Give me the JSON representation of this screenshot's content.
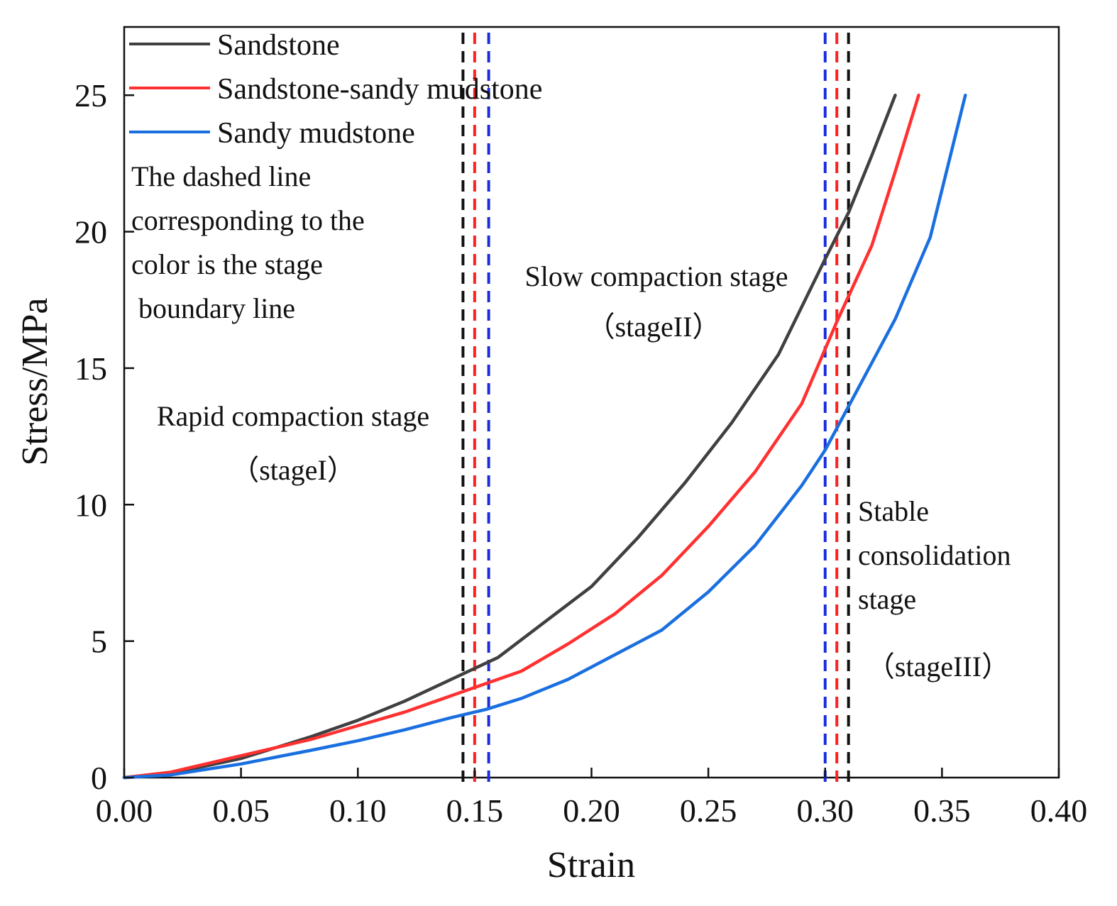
{
  "chart_data": {
    "type": "line",
    "title": "",
    "xlabel": "Strain",
    "ylabel": "Stress/MPa",
    "xlim": [
      0,
      0.4
    ],
    "ylim": [
      0,
      27.5
    ],
    "xticks": [
      0,
      0.05,
      0.1,
      0.15,
      0.2,
      0.25,
      0.3,
      0.35,
      0.4
    ],
    "xtick_labels": [
      "0.00",
      "0.05",
      "0.10",
      "0.15",
      "0.20",
      "0.25",
      "0.30",
      "0.35",
      "0.40"
    ],
    "yticks": [
      0,
      5,
      10,
      15,
      20,
      25
    ],
    "ytick_labels": [
      "0",
      "5",
      "10",
      "15",
      "20",
      "25"
    ],
    "grid": false,
    "legend_position": "top-left",
    "series": [
      {
        "name": "Sandstone",
        "color": "#404040",
        "x": [
          0,
          0.02,
          0.05,
          0.08,
          0.1,
          0.12,
          0.145,
          0.16,
          0.18,
          0.2,
          0.22,
          0.24,
          0.26,
          0.28,
          0.3,
          0.31,
          0.32,
          0.33
        ],
        "y": [
          0,
          0.15,
          0.7,
          1.5,
          2.1,
          2.8,
          3.8,
          4.4,
          5.7,
          7.0,
          8.8,
          10.8,
          13.0,
          15.5,
          19.0,
          20.7,
          22.8,
          25.0
        ]
      },
      {
        "name": "Sandstone-sandy mudstone",
        "color": "#ff3030",
        "x": [
          0,
          0.02,
          0.05,
          0.08,
          0.1,
          0.12,
          0.15,
          0.17,
          0.19,
          0.21,
          0.23,
          0.25,
          0.27,
          0.29,
          0.305,
          0.32,
          0.33,
          0.34
        ],
        "y": [
          0,
          0.2,
          0.8,
          1.4,
          1.9,
          2.4,
          3.3,
          3.9,
          4.9,
          6.0,
          7.4,
          9.2,
          11.2,
          13.7,
          16.7,
          19.5,
          22.2,
          25.0
        ]
      },
      {
        "name": "Sandy mudstone",
        "color": "#1a6fe0",
        "x": [
          0,
          0.02,
          0.05,
          0.08,
          0.1,
          0.12,
          0.14,
          0.155,
          0.17,
          0.19,
          0.21,
          0.23,
          0.25,
          0.27,
          0.29,
          0.3,
          0.31,
          0.33,
          0.345,
          0.36
        ],
        "y": [
          0,
          0.1,
          0.5,
          1.0,
          1.35,
          1.75,
          2.2,
          2.5,
          2.9,
          3.6,
          4.5,
          5.4,
          6.8,
          8.5,
          10.7,
          12.0,
          13.6,
          16.8,
          19.8,
          25.0
        ]
      }
    ],
    "boundaries": [
      {
        "series": "Sandstone",
        "color": "#111111",
        "x": [
          0.145,
          0.31
        ]
      },
      {
        "series": "Sandstone-sandy mudstone",
        "color": "#ff2020",
        "x": [
          0.15,
          0.305
        ]
      },
      {
        "series": "Sandy mudstone",
        "color": "#1a2be0",
        "x": [
          0.156,
          0.3
        ]
      }
    ],
    "annotations": {
      "note": [
        "The dashed line",
        "corresponding to the",
        "color is the stage",
        " boundary line"
      ],
      "stage1": [
        "Rapid compaction stage",
        "（stageI）"
      ],
      "stage2": [
        "Slow compaction stage",
        "（stageII）"
      ],
      "stage3": [
        "Stable",
        "consolidation",
        "stage",
        "（stageIII）"
      ]
    }
  }
}
